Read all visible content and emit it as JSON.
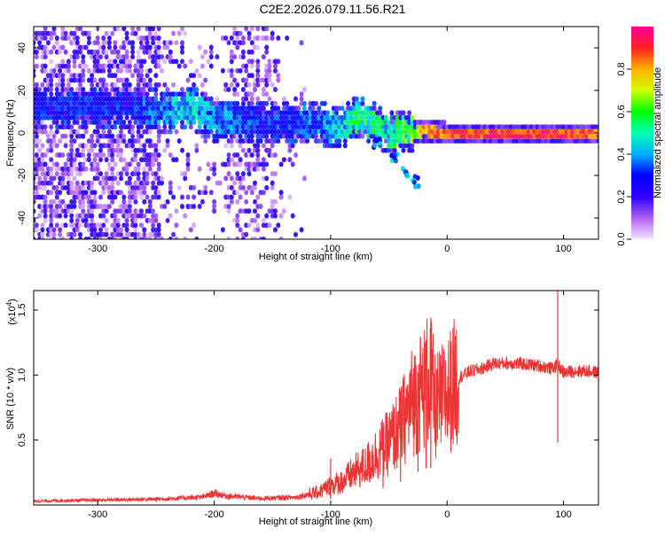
{
  "title": "C2E2.2026.079.11.56.R21",
  "chart_data": [
    {
      "type": "heatmap",
      "xlabel": "Height of straight line (km)",
      "ylabel": "Frequency (Hz)",
      "xlim": [
        -355,
        130
      ],
      "ylim": [
        -50,
        50
      ],
      "xticks": [
        -300,
        -200,
        -100,
        0,
        100
      ],
      "xtick_labels": [
        "-300",
        "-200",
        "-100",
        "0",
        "100"
      ],
      "yticks": [
        -40,
        -20,
        0,
        20,
        40
      ],
      "ytick_labels": [
        "-40",
        "-20",
        "0",
        "20",
        "40"
      ],
      "colorbar": {
        "label": "Normalized spectral amplitude",
        "range": [
          0,
          1
        ],
        "ticks": [
          0.0,
          0.2,
          0.4,
          0.6,
          0.8
        ],
        "tick_labels": [
          "0.0",
          "0.2",
          "0.4",
          "0.6",
          "0.8"
        ],
        "colors": [
          "#f4e4ff",
          "#b060f0",
          "#3000ff",
          "#0000ff",
          "#00b0ff",
          "#00ffb0",
          "#00ff00",
          "#d0ff00",
          "#ffb000",
          "#ff2020",
          "#ff00a0"
        ]
      },
      "ridge": [
        {
          "x": -270,
          "f": 12,
          "a": 0.3
        },
        {
          "x": -240,
          "f": 10,
          "a": 0.4
        },
        {
          "x": -220,
          "f": 12,
          "a": 0.45
        },
        {
          "x": -200,
          "f": 6,
          "a": 0.4
        },
        {
          "x": -160,
          "f": 4,
          "a": 0.3
        },
        {
          "x": -120,
          "f": 5,
          "a": 0.35
        },
        {
          "x": -90,
          "f": 3,
          "a": 0.45
        },
        {
          "x": -75,
          "f": 8,
          "a": 0.55
        },
        {
          "x": -50,
          "f": 0,
          "a": 0.5
        },
        {
          "x": -30,
          "f": 0,
          "a": 0.6
        },
        {
          "x": -20,
          "f": 1,
          "a": 0.8
        },
        {
          "x": 0,
          "f": 0,
          "a": 0.85
        },
        {
          "x": 50,
          "f": 0,
          "a": 0.9
        },
        {
          "x": 95,
          "f": 0,
          "a": 0.9
        },
        {
          "x": 130,
          "f": 0,
          "a": 0.85
        }
      ],
      "branch": [
        {
          "x": -60,
          "f": -5
        },
        {
          "x": -45,
          "f": -12
        },
        {
          "x": -35,
          "f": -18
        },
        {
          "x": -27,
          "f": -23
        }
      ]
    },
    {
      "type": "line",
      "xlabel": "Height of straight line (km)",
      "ylabel": "SNR (10 * v/v)",
      "exponent_label": "(x10",
      "exponent_power": "4",
      "exponent_close": ")",
      "xlim": [
        -355,
        130
      ],
      "ylim": [
        0,
        16500
      ],
      "xticks": [
        -300,
        -200,
        -100,
        0,
        100
      ],
      "xtick_labels": [
        "-300",
        "-200",
        "-100",
        "0",
        "100"
      ],
      "yticks": [
        5000,
        10000,
        15000
      ],
      "ytick_labels": [
        "0.5",
        "1.0",
        "1.5"
      ],
      "color": "#ee3333",
      "x": [
        -355,
        -300,
        -250,
        -210,
        -200,
        -190,
        -160,
        -130,
        -110,
        -100,
        -90,
        -80,
        -70,
        -60,
        -50,
        -40,
        -30,
        -20,
        -15,
        -10,
        0,
        10,
        20,
        30,
        40,
        60,
        80,
        90,
        95,
        100,
        110,
        120,
        130
      ],
      "values": [
        300,
        380,
        450,
        600,
        900,
        700,
        500,
        600,
        1000,
        1500,
        1800,
        2500,
        3000,
        4000,
        4800,
        6000,
        8000,
        9000,
        10000,
        7500,
        8500,
        9800,
        10300,
        10500,
        10900,
        10900,
        10700,
        10500,
        10800,
        10200,
        10300,
        10300,
        10200
      ],
      "spikes": [
        {
          "x": -100,
          "top": 3600
        },
        {
          "x": -55,
          "top": 6000
        },
        {
          "x": -40,
          "top": 8500
        },
        {
          "x": -25,
          "top": 10200
        },
        {
          "x": -18,
          "top": 12700
        },
        {
          "x": -14,
          "top": 14400
        },
        {
          "x": 95,
          "top": 16500,
          "bottom": 4800
        }
      ]
    }
  ]
}
